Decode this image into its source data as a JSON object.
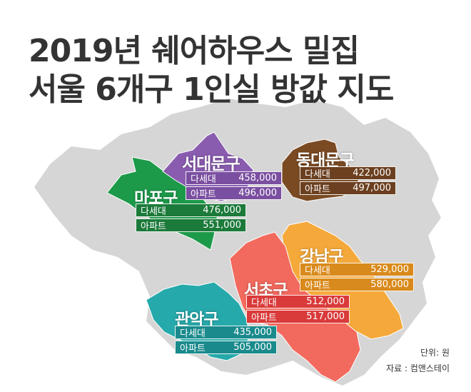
{
  "title": {
    "line1": "2019년 쉐어하우스 밀집",
    "line2": "서울 6개구 1인실 방값 지도"
  },
  "districts": [
    {
      "name": "서대문구",
      "color": "#7a4ea0",
      "prices": [
        {
          "type": "다세대",
          "value": "458,000"
        },
        {
          "type": "아파트",
          "value": "496,000"
        }
      ]
    },
    {
      "name": "동대문구",
      "color": "#6b3f1f",
      "prices": [
        {
          "type": "다세대",
          "value": "422,000"
        },
        {
          "type": "아파트",
          "value": "497,000"
        }
      ]
    },
    {
      "name": "마포구",
      "color": "#1c7a3a",
      "prices": [
        {
          "type": "다세대",
          "value": "476,000"
        },
        {
          "type": "아파트",
          "value": "551,000"
        }
      ]
    },
    {
      "name": "강남구",
      "color": "#d98a1c",
      "prices": [
        {
          "type": "다세대",
          "value": "529,000"
        },
        {
          "type": "아파트",
          "value": "580,000"
        }
      ]
    },
    {
      "name": "서초구",
      "color": "#d93a3a",
      "prices": [
        {
          "type": "다세대",
          "value": "512,000"
        },
        {
          "type": "아파트",
          "value": "517,000"
        }
      ]
    },
    {
      "name": "관악구",
      "color": "#1a8a8c",
      "prices": [
        {
          "type": "다세대",
          "value": "435,000"
        },
        {
          "type": "아파트",
          "value": "505,000"
        }
      ]
    }
  ],
  "footer": {
    "unit": "단위: 원",
    "source": "자료 : 컴앤스테이"
  },
  "colors": {
    "seoul_base": "#d6d6d6",
    "title_text": "#333333",
    "mapo_fill": "#1c9a4a",
    "seodaemun_fill": "#8a5cb0",
    "dongdaemun_fill": "#7a4a22",
    "gangnam_fill": "#f5a93a",
    "seocho_fill": "#f26a5e",
    "gwanak_fill": "#26a9ab"
  }
}
